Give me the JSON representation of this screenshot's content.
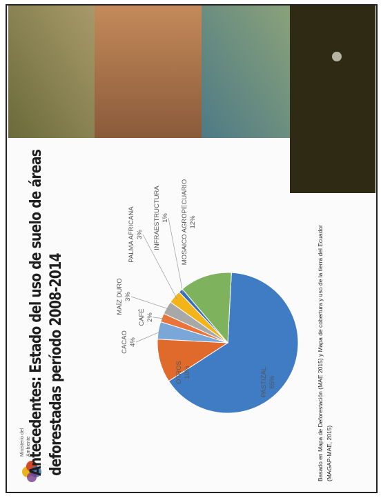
{
  "header": {
    "logo_text": "Ministerio del Ambiente"
  },
  "chart_data": {
    "type": "pie",
    "title": "Antecedentes: Estado del uso de suelo de áreas deforestadas período 2008-2014",
    "categories": [
      "PASTIZAL",
      "OTROS",
      "CACAO",
      "CAFÉ",
      "MAÍZ DURO",
      "PALMA AFRICANA",
      "INFRAESTRUCTURA",
      "MOSAICO AGROPECUARIO"
    ],
    "values": [
      65,
      10,
      4,
      2,
      3,
      3,
      1,
      12
    ],
    "value_labels": [
      "65%",
      "10%",
      "4%",
      "2%",
      "3%",
      "3%",
      "1%",
      "12%"
    ],
    "colors": [
      "#3f7cc4",
      "#e06a2c",
      "#7aa6d8",
      "#e8743a",
      "#a8a8a8",
      "#f2b418",
      "#3a6fb5",
      "#7eb25c"
    ]
  },
  "footnote": "Basado en Mapa de Deforestación (MAE 2015) y Mapa de cobertura y uso de la tierra del Ecuador (MAGAP-MAE, 2015)"
}
